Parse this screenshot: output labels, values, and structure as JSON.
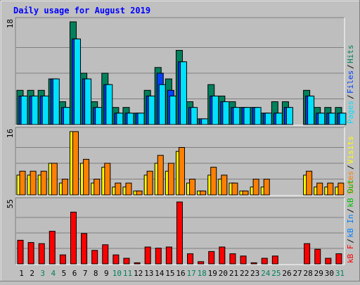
{
  "colors": {
    "background": "#c0c0c0",
    "panel": "#bebebe",
    "grid": "#808080",
    "title": "#0000ff",
    "hits": "#00805c",
    "files": "#0040ff",
    "pages": "#00e0ff",
    "visits": "#ffff00",
    "sites": "#ff8000",
    "kbytes": "#ff0000",
    "kb_in": "#0080ff",
    "kb_out": "#00c000",
    "weekend_day": "#00805c",
    "weekday_day": "#000000"
  },
  "chart_data": {
    "type": "bar",
    "title": "Daily usage for August 2019",
    "categories": [
      "1",
      "2",
      "3",
      "4",
      "5",
      "6",
      "7",
      "8",
      "9",
      "10",
      "11",
      "12",
      "13",
      "14",
      "15",
      "16",
      "17",
      "18",
      "19",
      "20",
      "21",
      "22",
      "23",
      "24",
      "25",
      "26",
      "27",
      "28",
      "29",
      "30",
      "31"
    ],
    "weekend_days": [
      "3",
      "4",
      "10",
      "11",
      "17",
      "18",
      "24",
      "25",
      "31"
    ],
    "panels": [
      {
        "id": "hits",
        "ymax_label": "18",
        "ylim": [
          0,
          18
        ],
        "legend": [
          "Pages",
          "Files",
          "Hits"
        ],
        "series": [
          {
            "name": "Hits",
            "values": [
              6,
              6,
              6,
              8,
              4,
              18,
              9,
              4,
              9,
              3,
              3,
              2,
              6,
              10,
              8,
              13,
              4,
              1,
              7,
              5,
              4,
              3,
              3,
              2,
              4,
              4,
              0,
              6,
              3,
              3,
              3
            ]
          },
          {
            "name": "Files",
            "values": [
              5,
              5,
              5,
              8,
              3,
              15,
              8,
              3,
              7,
              2,
              2,
              2,
              5,
              9,
              6,
              11,
              3,
              1,
              5,
              4,
              3,
              3,
              3,
              2,
              2,
              3,
              0,
              5,
              2,
              2,
              2
            ]
          },
          {
            "name": "Pages",
            "values": [
              5,
              5,
              5,
              8,
              3,
              15,
              8,
              3,
              7,
              2,
              2,
              2,
              5,
              7,
              5,
              11,
              3,
              1,
              5,
              4,
              3,
              3,
              3,
              2,
              2,
              3,
              0,
              5,
              2,
              2,
              2
            ]
          }
        ]
      },
      {
        "id": "visits",
        "ymax_label": "16",
        "ylim": [
          0,
          16
        ],
        "legend": [
          "Sites",
          "Visits"
        ],
        "series": [
          {
            "name": "Visits",
            "values": [
              5,
              5,
              5,
              8,
              3,
              16,
              8,
              3,
              7,
              2,
              2,
              1,
              5,
              8,
              6,
              11,
              3,
              1,
              5,
              4,
              3,
              1,
              2,
              2,
              0,
              0,
              0,
              5,
              2,
              2,
              2
            ]
          },
          {
            "name": "Sites",
            "values": [
              6,
              6,
              6,
              8,
              4,
              16,
              9,
              4,
              8,
              3,
              3,
              1,
              6,
              10,
              8,
              12,
              4,
              1,
              7,
              5,
              3,
              1,
              4,
              4,
              0,
              0,
              0,
              6,
              3,
              3,
              3
            ]
          }
        ]
      },
      {
        "id": "kbytes",
        "ymax_label": "55",
        "ylim": [
          0,
          55
        ],
        "legend": [
          "kB F",
          "kB In",
          "kB Out"
        ],
        "series": [
          {
            "name": "kB F",
            "values": [
              21,
              19,
              18,
              29,
              8,
              46,
              27,
              12,
              17,
              8,
              5,
              1,
              15,
              14,
              15,
              55,
              9,
              2,
              11,
              15,
              9,
              7,
              1,
              5,
              7,
              0,
              0,
              18,
              13,
              5,
              9
            ]
          }
        ]
      }
    ]
  }
}
